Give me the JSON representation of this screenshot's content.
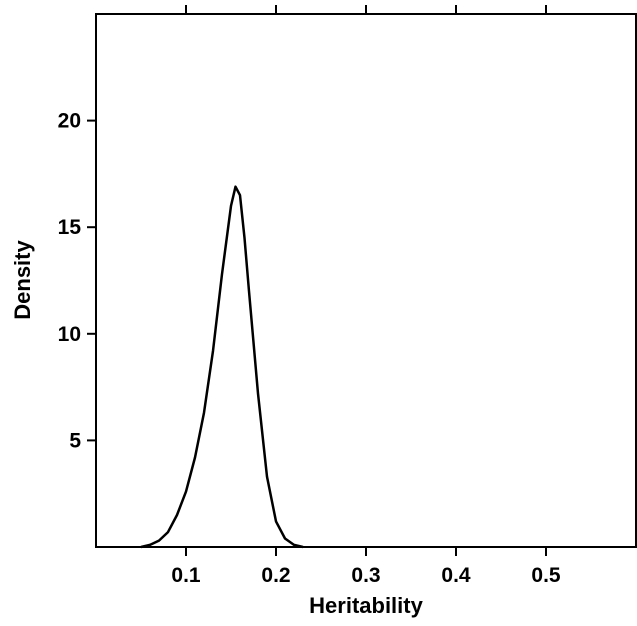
{
  "chart_data": {
    "type": "line",
    "title": "",
    "xlabel": "Heritability",
    "ylabel": "Density",
    "xlim": [
      0.0,
      0.6
    ],
    "ylim": [
      0,
      25
    ],
    "x_ticks": [
      0.1,
      0.2,
      0.3,
      0.4,
      0.5
    ],
    "x_tick_labels": [
      "0.1",
      "0.2",
      "0.3",
      "0.4",
      "0.5"
    ],
    "y_ticks": [
      5,
      10,
      15,
      20
    ],
    "y_tick_labels": [
      "5",
      "10",
      "15",
      "20"
    ],
    "top_ticks": [
      0.1,
      0.2,
      0.3,
      0.4,
      0.5
    ],
    "grid": false,
    "legend": "none",
    "series": [
      {
        "x": [
          0.05,
          0.06,
          0.07,
          0.08,
          0.09,
          0.1,
          0.11,
          0.12,
          0.13,
          0.14,
          0.15,
          0.155,
          0.16,
          0.165,
          0.17,
          0.18,
          0.19,
          0.2,
          0.21,
          0.22,
          0.23
        ],
        "y": [
          0.0,
          0.1,
          0.3,
          0.7,
          1.5,
          2.6,
          4.2,
          6.3,
          9.2,
          12.8,
          16.0,
          16.9,
          16.5,
          14.5,
          12.0,
          7.2,
          3.3,
          1.2,
          0.4,
          0.1,
          0.0
        ]
      }
    ],
    "colors": {
      "line": "#000000",
      "axis": "#000000"
    }
  }
}
